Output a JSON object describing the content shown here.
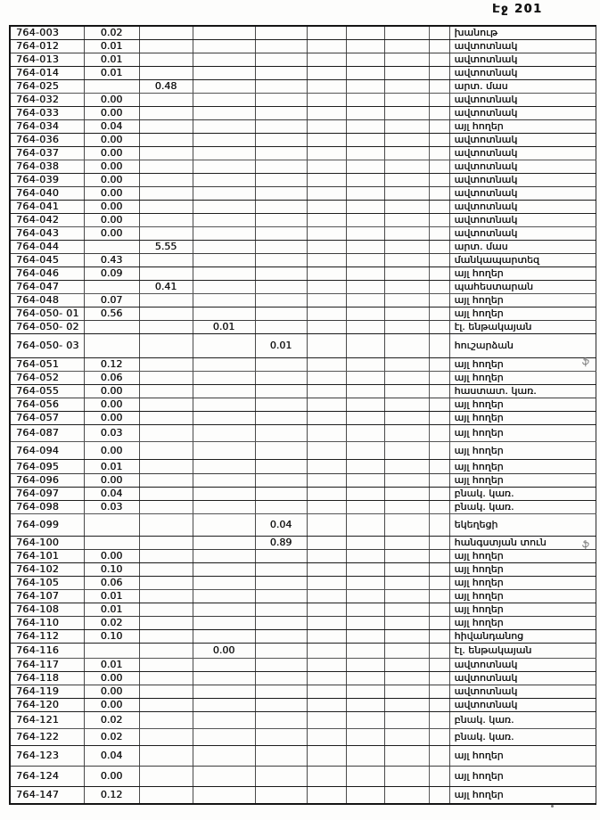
{
  "page": {
    "header": "Էջ 201"
  },
  "annotations": [
    {
      "text": "ֆ"
    },
    {
      "text": "ֆ"
    }
  ],
  "table": {
    "rows": [
      {
        "id": "764-003",
        "a": "0.02",
        "b": "",
        "c": "",
        "d": "",
        "label": "խանութ"
      },
      {
        "id": "764-012",
        "a": "0.01",
        "b": "",
        "c": "",
        "d": "",
        "label": "ավտոտնակ"
      },
      {
        "id": "764-013",
        "a": "0.01",
        "b": "",
        "c": "",
        "d": "",
        "label": "ավտոտնակ"
      },
      {
        "id": "764-014",
        "a": "0.01",
        "b": "",
        "c": "",
        "d": "",
        "label": "ավտոտնակ"
      },
      {
        "id": "764-025",
        "a": "",
        "b": "0.48",
        "c": "",
        "d": "",
        "label": "արտ. մաս"
      },
      {
        "id": "764-032",
        "a": "0.00",
        "b": "",
        "c": "",
        "d": "",
        "label": "ավտոտնակ"
      },
      {
        "id": "764-033",
        "a": "0.00",
        "b": "",
        "c": "",
        "d": "",
        "label": "ավտոտնակ"
      },
      {
        "id": "764-034",
        "a": "0.04",
        "b": "",
        "c": "",
        "d": "",
        "label": "այլ հողեր"
      },
      {
        "id": "764-036",
        "a": "0.00",
        "b": "",
        "c": "",
        "d": "",
        "label": "ավտոտնակ"
      },
      {
        "id": "764-037",
        "a": "0.00",
        "b": "",
        "c": "",
        "d": "",
        "label": "ավտոտնակ"
      },
      {
        "id": "764-038",
        "a": "0.00",
        "b": "",
        "c": "",
        "d": "",
        "label": "ավտոտնակ"
      },
      {
        "id": "764-039",
        "a": "0.00",
        "b": "",
        "c": "",
        "d": "",
        "label": "ավտոտնակ"
      },
      {
        "id": "764-040",
        "a": "0.00",
        "b": "",
        "c": "",
        "d": "",
        "label": "ավտոտնակ"
      },
      {
        "id": "764-041",
        "a": "0.00",
        "b": "",
        "c": "",
        "d": "",
        "label": "ավտոտնակ"
      },
      {
        "id": "764-042",
        "a": "0.00",
        "b": "",
        "c": "",
        "d": "",
        "label": "ավտոտնակ"
      },
      {
        "id": "764-043",
        "a": "0.00",
        "b": "",
        "c": "",
        "d": "",
        "label": "ավտոտնակ"
      },
      {
        "id": "764-044",
        "a": "",
        "b": "5.55",
        "c": "",
        "d": "",
        "label": "արտ. մաս"
      },
      {
        "id": "764-045",
        "a": "0.43",
        "b": "",
        "c": "",
        "d": "",
        "label": "մանկապարտեզ"
      },
      {
        "id": "764-046",
        "a": "0.09",
        "b": "",
        "c": "",
        "d": "",
        "label": "այլ հողեր"
      },
      {
        "id": "764-047",
        "a": "",
        "b": "0.41",
        "c": "",
        "d": "",
        "label": "պահեստարան"
      },
      {
        "id": "764-048",
        "a": "0.07",
        "b": "",
        "c": "",
        "d": "",
        "label": "այլ հողեր"
      },
      {
        "id": "764-050- 01",
        "a": "0.56",
        "b": "",
        "c": "",
        "d": "",
        "label": "այլ հողեր"
      },
      {
        "id": "764-050- 02",
        "a": "",
        "b": "",
        "c": "0.01",
        "d": "",
        "label": "էլ. ենթակայան"
      },
      {
        "id": "764-050- 03",
        "a": "",
        "b": "",
        "c": "",
        "d": "0.01",
        "label": "հուշարձան"
      },
      {
        "id": "764-051",
        "a": "0.12",
        "b": "",
        "c": "",
        "d": "",
        "label": "այլ հողեր"
      },
      {
        "id": "764-052",
        "a": "0.06",
        "b": "",
        "c": "",
        "d": "",
        "label": "այլ հողեր"
      },
      {
        "id": "764-055",
        "a": "0.00",
        "b": "",
        "c": "",
        "d": "",
        "label": "հաստատ. կառ."
      },
      {
        "id": "764-056",
        "a": "0.00",
        "b": "",
        "c": "",
        "d": "",
        "label": "այլ հողեր"
      },
      {
        "id": "764-057",
        "a": "0.00",
        "b": "",
        "c": "",
        "d": "",
        "label": "այլ հողեր"
      },
      {
        "id": "764-087",
        "a": "0.03",
        "b": "",
        "c": "",
        "d": "",
        "label": "այլ հողեր"
      },
      {
        "id": "764-094",
        "a": "0.00",
        "b": "",
        "c": "",
        "d": "",
        "label": "այլ հողեր"
      },
      {
        "id": "764-095",
        "a": "0.01",
        "b": "",
        "c": "",
        "d": "",
        "label": "այլ հողեր"
      },
      {
        "id": "764-096",
        "a": "0.00",
        "b": "",
        "c": "",
        "d": "",
        "label": "այլ հողեր"
      },
      {
        "id": "764-097",
        "a": "0.04",
        "b": "",
        "c": "",
        "d": "",
        "label": "բնակ. կառ."
      },
      {
        "id": "764-098",
        "a": "0.03",
        "b": "",
        "c": "",
        "d": "",
        "label": "բնակ. կառ."
      },
      {
        "id": "764-099",
        "a": "",
        "b": "",
        "c": "",
        "d": "0.04",
        "label": "եկեղեցի"
      },
      {
        "id": "764-100",
        "a": "",
        "b": "",
        "c": "",
        "d": "0.89",
        "label": "հանգստյան տուն"
      },
      {
        "id": "764-101",
        "a": "0.00",
        "b": "",
        "c": "",
        "d": "",
        "label": "այլ հողեր"
      },
      {
        "id": "764-102",
        "a": "0.10",
        "b": "",
        "c": "",
        "d": "",
        "label": "այլ հողեր"
      },
      {
        "id": "764-105",
        "a": "0.06",
        "b": "",
        "c": "",
        "d": "",
        "label": "այլ հողեր"
      },
      {
        "id": "764-107",
        "a": "0.01",
        "b": "",
        "c": "",
        "d": "",
        "label": "այլ հողեր"
      },
      {
        "id": "764-108",
        "a": "0.01",
        "b": "",
        "c": "",
        "d": "",
        "label": "այլ հողեր"
      },
      {
        "id": "764-110",
        "a": "0.02",
        "b": "",
        "c": "",
        "d": "",
        "label": "այլ հողեր"
      },
      {
        "id": "764-112",
        "a": "0.10",
        "b": "",
        "c": "",
        "d": "",
        "label": "հիվանդանոց"
      },
      {
        "id": "764-116",
        "a": "",
        "b": "",
        "c": "0.00",
        "d": "",
        "label": "էլ. ենթակայան"
      },
      {
        "id": "764-117",
        "a": "0.01",
        "b": "",
        "c": "",
        "d": "",
        "label": "ավտոտնակ"
      },
      {
        "id": "764-118",
        "a": "0.00",
        "b": "",
        "c": "",
        "d": "",
        "label": "ավտոտնակ"
      },
      {
        "id": "764-119",
        "a": "0.00",
        "b": "",
        "c": "",
        "d": "",
        "label": "ավտոտնակ"
      },
      {
        "id": "764-120",
        "a": "0.00",
        "b": "",
        "c": "",
        "d": "",
        "label": "ավտոտնակ"
      },
      {
        "id": "764-121",
        "a": "0.02",
        "b": "",
        "c": "",
        "d": "",
        "label": "բնակ. կառ."
      },
      {
        "id": "764-122",
        "a": "0.02",
        "b": "",
        "c": "",
        "d": "",
        "label": "բնակ. կառ."
      },
      {
        "id": "764-123",
        "a": "0.04",
        "b": "",
        "c": "",
        "d": "",
        "label": "այլ հողեր"
      },
      {
        "id": "764-124",
        "a": "0.00",
        "b": "",
        "c": "",
        "d": "",
        "label": "այլ հողեր"
      },
      {
        "id": "764-147",
        "a": "0.12",
        "b": "",
        "c": "",
        "d": "",
        "label": "այլ հողեր"
      }
    ]
  }
}
